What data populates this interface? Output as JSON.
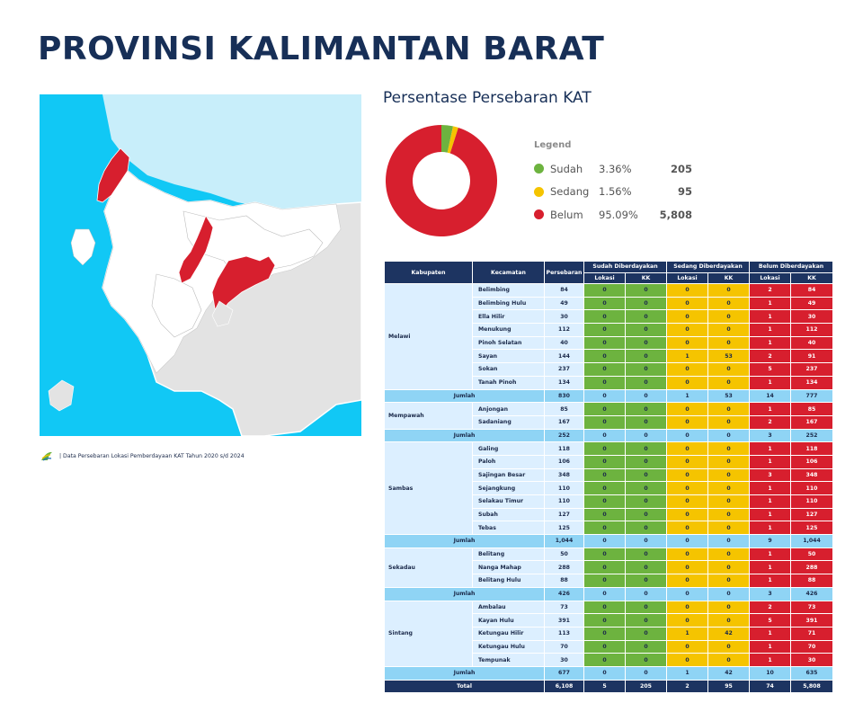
{
  "page_title": "PROVINSI KALIMANTAN BARAT",
  "distribution_title": "Persentase Persebaran KAT",
  "source_note": "| Data Persebaran Lokasi Pemberdayaan KAT Tahun 2020 s/d 2024",
  "colors": {
    "sudah": "#6db33f",
    "sedang": "#f5c400",
    "belum": "#d71f2e",
    "header": "#1d3461",
    "sea": "#11c8f5",
    "sea_light": "#c8eefa",
    "highlight": "#d71f2e"
  },
  "legend": {
    "heading": "Legend",
    "items": [
      {
        "label": "Sudah",
        "pct": "3.36%",
        "kk": "205",
        "color": "#6db33f",
        "value": 3.36
      },
      {
        "label": "Sedang",
        "pct": "1.56%",
        "kk": "95",
        "color": "#f5c400",
        "value": 1.56
      },
      {
        "label": "Belum",
        "pct": "95.09%",
        "kk": "5,808",
        "color": "#d71f2e",
        "value": 95.09
      }
    ]
  },
  "table": {
    "headers": {
      "kabupaten": "Kabupaten",
      "kecamatan": "Kecamatan",
      "persebaran": "Persebaran",
      "sudah": "Sudah Diberdayakan",
      "sedang": "Sedang Diberdayakan",
      "belum": "Belum Diberdayakan",
      "lokasi": "Lokasi",
      "kk": "KK"
    },
    "groups": [
      {
        "kabupaten": "Melawi",
        "rows": [
          [
            "Belimbing",
            "84",
            "0",
            "0",
            "0",
            "0",
            "2",
            "84"
          ],
          [
            "Belimbing Hulu",
            "49",
            "0",
            "0",
            "0",
            "0",
            "1",
            "49"
          ],
          [
            "Ella Hilir",
            "30",
            "0",
            "0",
            "0",
            "0",
            "1",
            "30"
          ],
          [
            "Menukung",
            "112",
            "0",
            "0",
            "0",
            "0",
            "1",
            "112"
          ],
          [
            "Pinoh Selatan",
            "40",
            "0",
            "0",
            "0",
            "0",
            "1",
            "40"
          ],
          [
            "Sayan",
            "144",
            "0",
            "0",
            "1",
            "53",
            "2",
            "91"
          ],
          [
            "Sokan",
            "237",
            "0",
            "0",
            "0",
            "0",
            "5",
            "237"
          ],
          [
            "Tanah Pinoh",
            "134",
            "0",
            "0",
            "0",
            "0",
            "1",
            "134"
          ]
        ],
        "jumlah": [
          "Jumlah",
          "830",
          "0",
          "0",
          "1",
          "53",
          "14",
          "777"
        ]
      },
      {
        "kabupaten": "Mempawah",
        "rows": [
          [
            "Anjongan",
            "85",
            "0",
            "0",
            "0",
            "0",
            "1",
            "85"
          ],
          [
            "Sadaniang",
            "167",
            "0",
            "0",
            "0",
            "0",
            "2",
            "167"
          ]
        ],
        "jumlah": [
          "Jumlah",
          "252",
          "0",
          "0",
          "0",
          "0",
          "3",
          "252"
        ]
      },
      {
        "kabupaten": "Sambas",
        "rows": [
          [
            "Galing",
            "118",
            "0",
            "0",
            "0",
            "0",
            "1",
            "118"
          ],
          [
            "Paloh",
            "106",
            "0",
            "0",
            "0",
            "0",
            "1",
            "106"
          ],
          [
            "Sajingan Besar",
            "348",
            "0",
            "0",
            "0",
            "0",
            "3",
            "348"
          ],
          [
            "Sejangkung",
            "110",
            "0",
            "0",
            "0",
            "0",
            "1",
            "110"
          ],
          [
            "Selakau Timur",
            "110",
            "0",
            "0",
            "0",
            "0",
            "1",
            "110"
          ],
          [
            "Subah",
            "127",
            "0",
            "0",
            "0",
            "0",
            "1",
            "127"
          ],
          [
            "Tebas",
            "125",
            "0",
            "0",
            "0",
            "0",
            "1",
            "125"
          ]
        ],
        "jumlah": [
          "Jumlah",
          "1,044",
          "0",
          "0",
          "0",
          "0",
          "9",
          "1,044"
        ]
      },
      {
        "kabupaten": "Sekadau",
        "rows": [
          [
            "Belitang",
            "50",
            "0",
            "0",
            "0",
            "0",
            "1",
            "50"
          ],
          [
            "Nanga Mahap",
            "288",
            "0",
            "0",
            "0",
            "0",
            "1",
            "288"
          ],
          [
            "Belitang Hulu",
            "88",
            "0",
            "0",
            "0",
            "0",
            "1",
            "88"
          ]
        ],
        "jumlah": [
          "Jumlah",
          "426",
          "0",
          "0",
          "0",
          "0",
          "3",
          "426"
        ]
      },
      {
        "kabupaten": "Sintang",
        "rows": [
          [
            "Ambalau",
            "73",
            "0",
            "0",
            "0",
            "0",
            "2",
            "73"
          ],
          [
            "Kayan Hulu",
            "391",
            "0",
            "0",
            "0",
            "0",
            "5",
            "391"
          ],
          [
            "Ketungau Hilir",
            "113",
            "0",
            "0",
            "1",
            "42",
            "1",
            "71"
          ],
          [
            "Ketungau Hulu",
            "70",
            "0",
            "0",
            "0",
            "0",
            "1",
            "70"
          ],
          [
            "Tempunak",
            "30",
            "0",
            "0",
            "0",
            "0",
            "1",
            "30"
          ]
        ],
        "jumlah": [
          "Jumlah",
          "677",
          "0",
          "0",
          "1",
          "42",
          "10",
          "635"
        ]
      }
    ],
    "total": [
      "Total",
      "6,108",
      "5",
      "205",
      "2",
      "95",
      "74",
      "5,808"
    ]
  }
}
